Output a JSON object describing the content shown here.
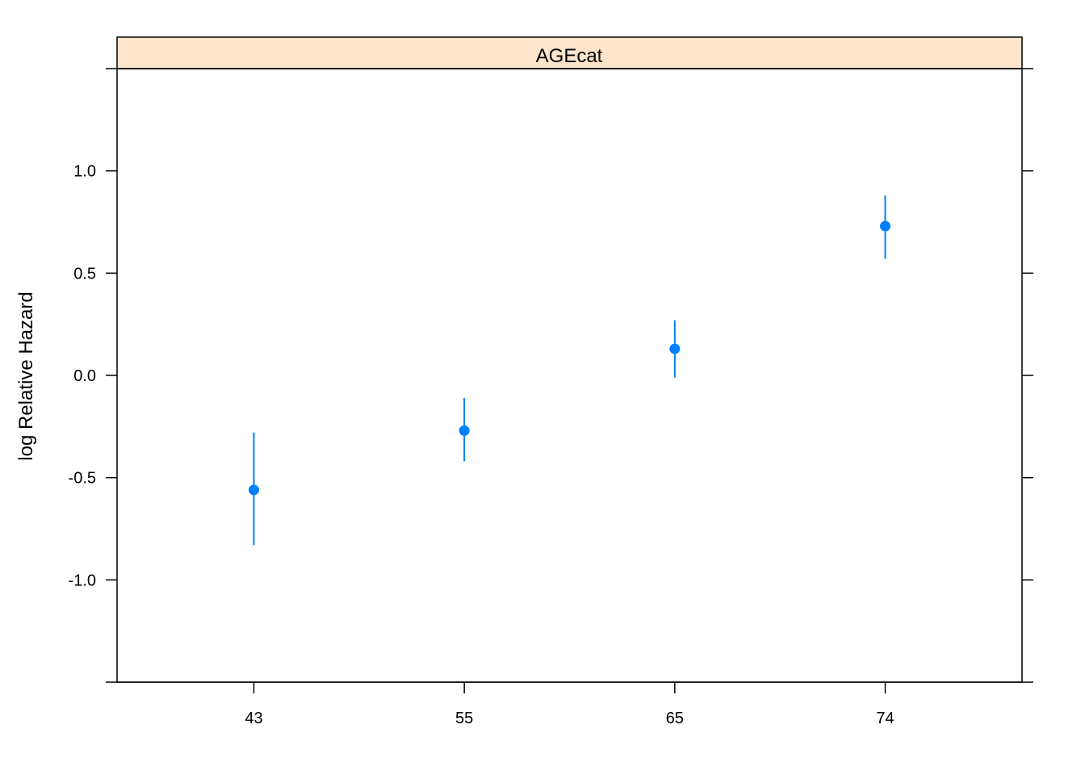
{
  "chart_data": {
    "type": "scatter",
    "panel_title": "AGEcat",
    "xlabel": "",
    "ylabel": "log Relative Hazard",
    "categories": [
      "43",
      "55",
      "65",
      "74"
    ],
    "ylim": [
      -1.5,
      1.5
    ],
    "y_ticks": [
      "1.0",
      "0.5",
      "0.0",
      "-0.5",
      "-1.0"
    ],
    "y_tick_values": [
      1.0,
      0.5,
      0.0,
      -0.5,
      -1.0
    ],
    "grid": false,
    "series": [
      {
        "estimate": [
          -0.56,
          -0.27,
          0.13,
          0.73
        ],
        "lower": [
          -0.83,
          -0.42,
          -0.01,
          0.57
        ],
        "upper": [
          -0.28,
          -0.11,
          0.27,
          0.88
        ]
      }
    ],
    "colors": {
      "points": "#0080ff",
      "strip": "#ffe5cc",
      "axis": "#000000"
    }
  }
}
